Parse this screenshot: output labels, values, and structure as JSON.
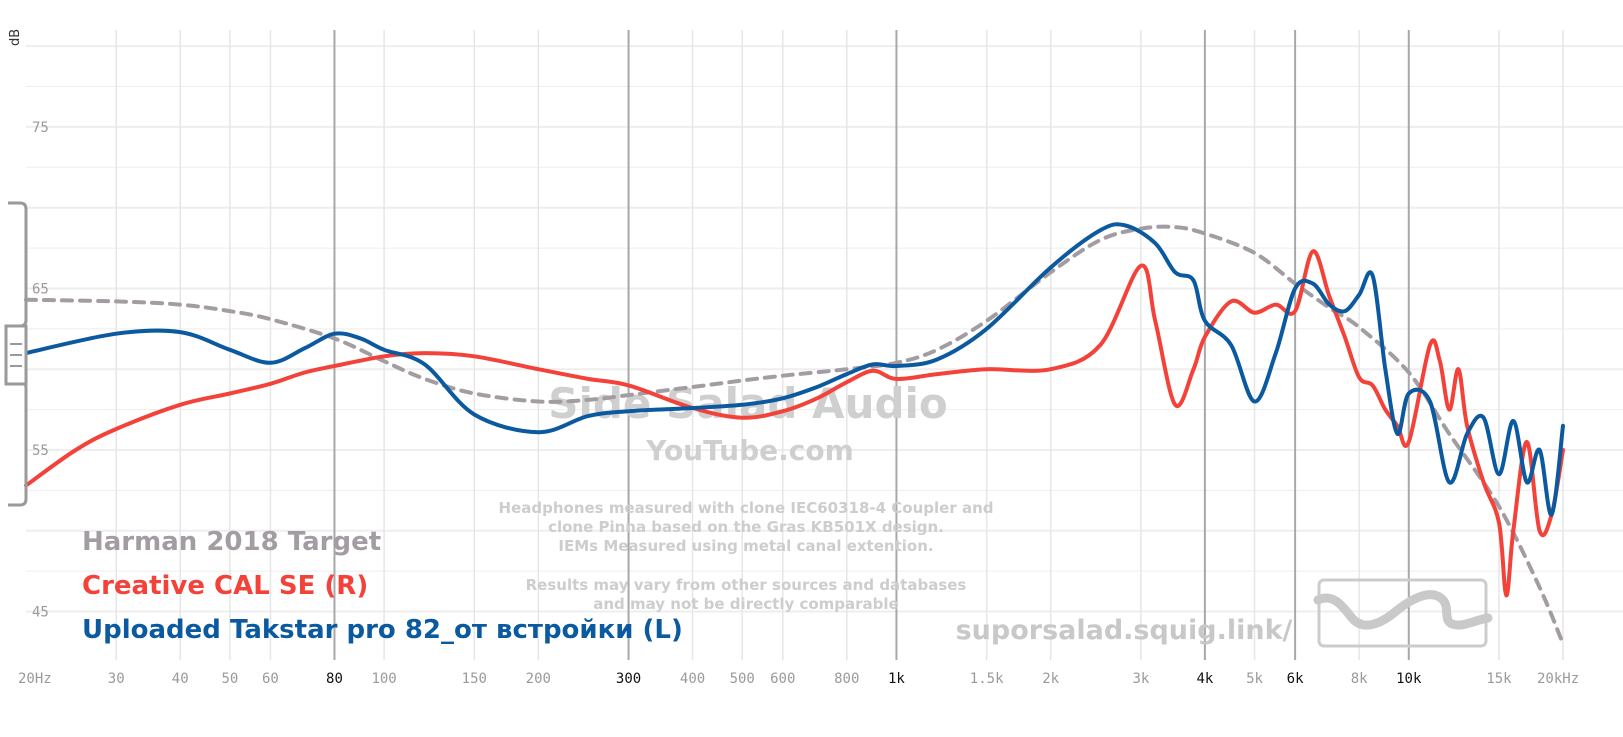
{
  "chart_data": {
    "type": "line",
    "title": "",
    "xlabel": "",
    "ylabel": "dB",
    "x_scale": "log",
    "xlim": [
      20,
      20000
    ],
    "ylim": [
      42,
      81
    ],
    "x_ticks": [
      {
        "value": 20,
        "label": "20Hz",
        "major": false
      },
      {
        "value": 30,
        "label": "30",
        "major": false
      },
      {
        "value": 40,
        "label": "40",
        "major": false
      },
      {
        "value": 50,
        "label": "50",
        "major": false
      },
      {
        "value": 60,
        "label": "60",
        "major": false
      },
      {
        "value": 80,
        "label": "80",
        "major": true
      },
      {
        "value": 100,
        "label": "100",
        "major": false
      },
      {
        "value": 150,
        "label": "150",
        "major": false
      },
      {
        "value": 200,
        "label": "200",
        "major": false
      },
      {
        "value": 300,
        "label": "300",
        "major": true
      },
      {
        "value": 400,
        "label": "400",
        "major": false
      },
      {
        "value": 500,
        "label": "500",
        "major": false
      },
      {
        "value": 600,
        "label": "600",
        "major": false
      },
      {
        "value": 800,
        "label": "800",
        "major": false
      },
      {
        "value": 1000,
        "label": "1k",
        "major": true
      },
      {
        "value": 1500,
        "label": "1.5k",
        "major": false
      },
      {
        "value": 2000,
        "label": "2k",
        "major": false
      },
      {
        "value": 3000,
        "label": "3k",
        "major": false
      },
      {
        "value": 4000,
        "label": "4k",
        "major": true
      },
      {
        "value": 5000,
        "label": "5k",
        "major": false
      },
      {
        "value": 6000,
        "label": "6k",
        "major": true
      },
      {
        "value": 8000,
        "label": "8k",
        "major": false
      },
      {
        "value": 10000,
        "label": "10k",
        "major": true
      },
      {
        "value": 15000,
        "label": "15k",
        "major": false
      },
      {
        "value": 20000,
        "label": "20kHz",
        "major": false
      }
    ],
    "y_ticks": [
      75,
      65,
      55,
      45
    ],
    "grid": true,
    "legend_position": "bottom-left",
    "series": [
      {
        "name": "Harman 2018 Target",
        "color": "#a39da3",
        "dashed": true,
        "x": [
          20,
          30,
          40,
          50,
          60,
          80,
          100,
          120,
          150,
          200,
          250,
          300,
          400,
          500,
          600,
          800,
          1000,
          1200,
          1500,
          2000,
          2500,
          3000,
          3500,
          4000,
          5000,
          6000,
          7000,
          8000,
          10000,
          12000,
          15000,
          18000,
          20000
        ],
        "y": [
          64.3,
          64.2,
          64.0,
          63.6,
          63.1,
          61.9,
          60.5,
          59.4,
          58.5,
          58.0,
          58.1,
          58.4,
          58.9,
          59.3,
          59.6,
          60.0,
          60.4,
          61.2,
          63.0,
          66.0,
          68.0,
          68.7,
          68.8,
          68.4,
          67.2,
          65.3,
          63.8,
          62.6,
          59.8,
          56.0,
          51.5,
          46.5,
          43.0
        ]
      },
      {
        "name": "Creative CAL SE (R)",
        "color": "#f3423a",
        "dashed": false,
        "x": [
          20,
          25,
          30,
          40,
          50,
          60,
          70,
          80,
          100,
          120,
          150,
          200,
          250,
          300,
          400,
          500,
          600,
          700,
          800,
          900,
          1000,
          1200,
          1500,
          2000,
          2500,
          3000,
          3200,
          3500,
          3800,
          4000,
          4500,
          5000,
          5500,
          6000,
          6500,
          7000,
          7500,
          8000,
          8500,
          9000,
          9500,
          10000,
          11000,
          11500,
          12000,
          12500,
          13000,
          14000,
          15000,
          15500,
          16000,
          17000,
          18000,
          19000,
          20000
        ],
        "y": [
          52.8,
          55.0,
          56.3,
          57.8,
          58.5,
          59.1,
          59.8,
          60.2,
          60.8,
          61.0,
          60.8,
          60.0,
          59.4,
          59.0,
          57.6,
          57.0,
          57.4,
          58.2,
          59.2,
          59.9,
          59.4,
          59.7,
          60.0,
          60.0,
          61.5,
          66.4,
          63.0,
          57.8,
          60.0,
          62.0,
          64.2,
          63.5,
          64.0,
          63.6,
          67.3,
          64.5,
          62.0,
          59.5,
          59.0,
          57.5,
          56.5,
          55.5,
          61.5,
          60.5,
          57.5,
          60.0,
          56.5,
          53.0,
          50.5,
          46.0,
          50.0,
          55.5,
          50.0,
          51.0,
          55.0
        ]
      },
      {
        "name": "Uploaded Takstar pro 82_от встройки (L)",
        "color": "#0b5aa0",
        "dashed": false,
        "x": [
          20,
          30,
          40,
          50,
          60,
          70,
          80,
          90,
          100,
          120,
          150,
          200,
          250,
          300,
          400,
          500,
          600,
          700,
          800,
          900,
          1000,
          1200,
          1500,
          2000,
          2500,
          2800,
          3200,
          3500,
          3800,
          4000,
          4500,
          5000,
          5500,
          6000,
          6500,
          7000,
          7500,
          8000,
          8500,
          9000,
          9500,
          10000,
          11000,
          12000,
          13000,
          14000,
          15000,
          16000,
          17000,
          18000,
          19000,
          20000
        ],
        "y": [
          61.0,
          62.2,
          62.3,
          61.2,
          60.4,
          61.3,
          62.2,
          61.9,
          61.2,
          60.3,
          57.2,
          56.1,
          57.1,
          57.4,
          57.6,
          57.8,
          58.2,
          58.9,
          59.7,
          60.3,
          60.2,
          60.6,
          62.5,
          66.3,
          68.6,
          68.9,
          67.8,
          66.0,
          65.5,
          63.0,
          61.5,
          58.0,
          61.0,
          65.0,
          65.3,
          64.0,
          63.6,
          64.6,
          65.8,
          60.0,
          56.0,
          58.5,
          58.0,
          53.0,
          56.0,
          57.0,
          53.5,
          56.8,
          53.0,
          55.0,
          51.0,
          56.5
        ]
      }
    ]
  },
  "watermark": {
    "brand": "Side Salad Audio",
    "site": "YouTube.com",
    "note_lines": [
      "Headphones measured with clone IEC60318-4 Coupler and",
      "clone Pinna based on the Gras KB501X design.",
      "IEMs Measured using metal canal extention.",
      "",
      "Results may vary from other sources and databases",
      "and may not be directly comparable"
    ],
    "url": "suporsalad.squig.link/"
  },
  "colors": {
    "grid_minor": "#e6e6e6",
    "grid_major": "#a8a8a8",
    "hgrid": "#eeeeee",
    "tick_label": "#9a9a9a",
    "tick_label_major": "#111111",
    "watermark": "#cfcfcf"
  },
  "icons": {
    "range_handle": "vertical-bracket-handle",
    "logo": "squiggle-logo"
  }
}
